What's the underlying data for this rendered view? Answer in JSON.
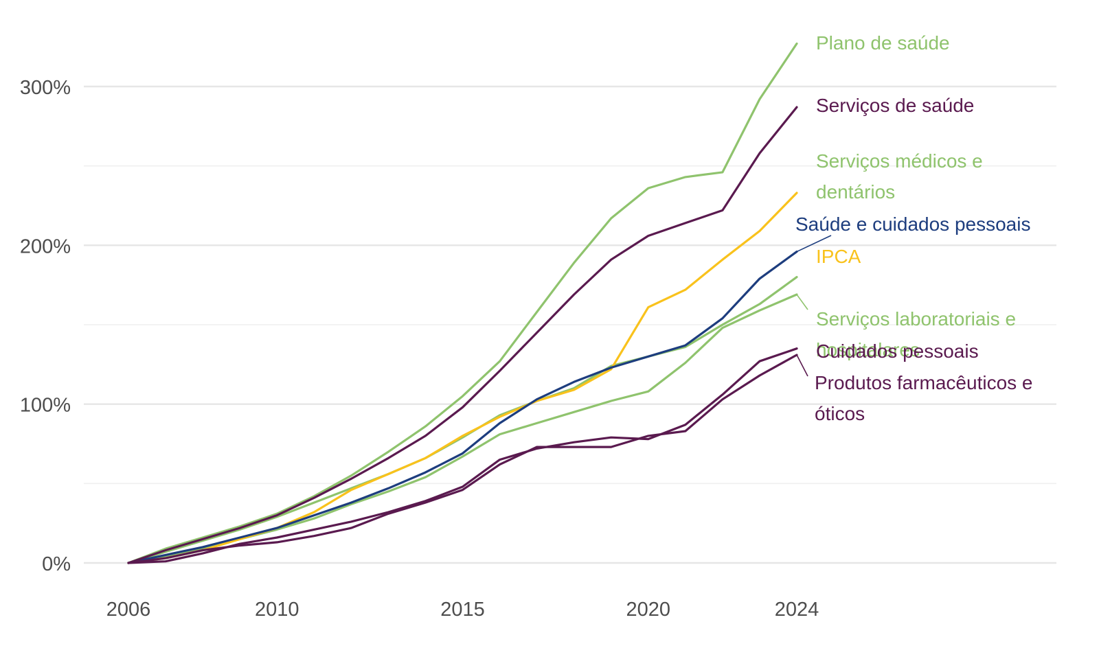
{
  "chart_data": {
    "type": "line",
    "title": "",
    "xlabel": "",
    "ylabel": "",
    "xlim": [
      2003.5,
      2031.5
    ],
    "ylim": [
      -12,
      330
    ],
    "x_ticks": [
      2006,
      2010,
      2015,
      2020,
      2024
    ],
    "x_tick_labels": [
      "2006",
      "2010",
      "2015",
      "2020",
      "2024"
    ],
    "y_ticks": [
      0,
      100,
      200,
      300
    ],
    "y_tick_labels": [
      "0%",
      "100%",
      "200%",
      "300%"
    ],
    "y_minor_ticks": [
      50,
      150,
      250
    ],
    "grid": true,
    "legend": "direct labels right of series",
    "x": [
      2006,
      2007,
      2008,
      2009,
      2010,
      2011,
      2012,
      2013,
      2014,
      2015,
      2016,
      2017,
      2018,
      2019,
      2020,
      2021,
      2022,
      2023,
      2024
    ],
    "series": [
      {
        "name": "Plano de saúde",
        "label_lines": [
          "Plano de saúde"
        ],
        "color": "#8fc36d",
        "values": [
          0,
          9,
          16,
          23,
          31,
          42,
          55,
          70,
          86,
          105,
          127,
          158,
          189,
          217,
          236,
          243,
          246,
          292,
          327
        ]
      },
      {
        "name": "Serviços de saúde",
        "label_lines": [
          "Serviços de saúde"
        ],
        "color": "#5a1a4f",
        "values": [
          0,
          8,
          15,
          22,
          30,
          41,
          53,
          66,
          80,
          98,
          121,
          145,
          169,
          191,
          206,
          214,
          222,
          258,
          287
        ]
      },
      {
        "name": "Serviços médicos e dentários",
        "label_lines": [
          "Serviços médicos e",
          "dentários"
        ],
        "color": "#8fc36d",
        "values": [
          0,
          7,
          14,
          21,
          29,
          38,
          47,
          56,
          66,
          79,
          93,
          102,
          110,
          124,
          130,
          136,
          150,
          163,
          180
        ]
      },
      {
        "name": "Saúde e cuidados pessoais",
        "label_lines": [
          "Saúde e cuidados pessoais"
        ],
        "color": "#1d3d7e",
        "values": [
          0,
          5,
          10,
          16,
          22,
          30,
          38,
          47,
          57,
          69,
          88,
          103,
          114,
          123,
          130,
          137,
          154,
          179,
          196
        ]
      },
      {
        "name": "Serviços laboratoriais e hospitalares",
        "label_lines": [
          "Serviços laboratoriais e",
          "hospitalares"
        ],
        "color": "#8fc36d",
        "values": [
          0,
          4,
          9,
          15,
          21,
          28,
          37,
          45,
          54,
          67,
          81,
          88,
          95,
          102,
          108,
          126,
          148,
          159,
          169
        ]
      },
      {
        "name": "IPCA",
        "label_lines": [
          "IPCA"
        ],
        "color": "#f9c21c",
        "values": [
          0,
          3,
          8,
          15,
          22,
          32,
          46,
          56,
          66,
          80,
          92,
          102,
          109,
          122,
          161,
          172,
          191,
          209,
          233
        ]
      },
      {
        "name": "Cuidados pessoais",
        "label_lines": [
          "Cuidados pessoais"
        ],
        "color": "#5a1a4f",
        "values": [
          0,
          1,
          6,
          12,
          16,
          21,
          26,
          32,
          39,
          48,
          65,
          72,
          76,
          79,
          78,
          87,
          106,
          127,
          135
        ]
      },
      {
        "name": "Produtos farmacêuticos e óticos",
        "label_lines": [
          "Produtos farmacêuticos e",
          "óticos"
        ],
        "color": "#5a1a4f",
        "values": [
          0,
          3,
          8,
          11,
          13,
          17,
          22,
          31,
          38,
          46,
          62,
          73,
          73,
          73,
          80,
          83,
          103,
          118,
          131
        ]
      }
    ]
  }
}
